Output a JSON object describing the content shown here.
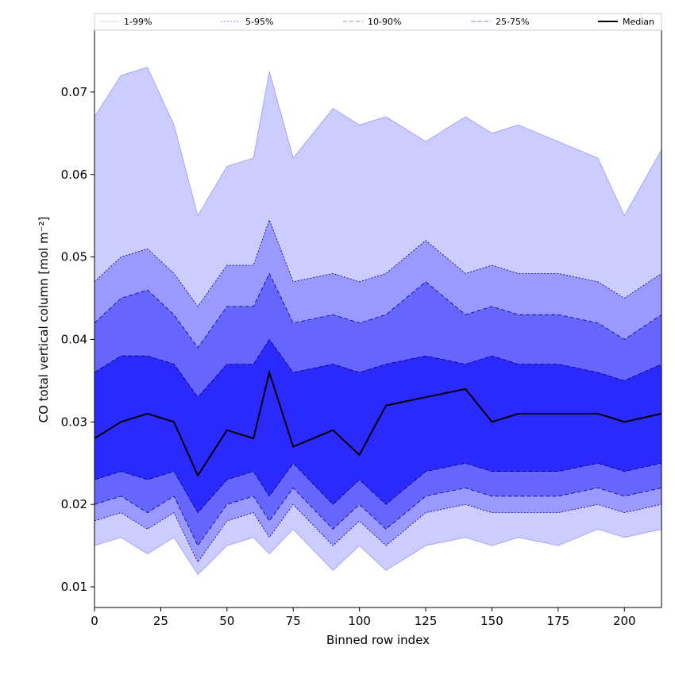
{
  "chart_data": {
    "type": "area",
    "xlabel": "Binned row index",
    "ylabel": "CO total vertical column [mol m⁻²]",
    "xlim": [
      0,
      214
    ],
    "ylim": [
      0.0075,
      0.0775
    ],
    "xticks": [
      0,
      25,
      50,
      75,
      100,
      125,
      150,
      175,
      200
    ],
    "yticks": [
      0.01,
      0.02,
      0.03,
      0.04,
      0.05,
      0.06,
      0.07
    ],
    "ytick_labels": [
      "0.01",
      "0.02",
      "0.03",
      "0.04",
      "0.05",
      "0.06",
      "0.07"
    ],
    "grid": false,
    "legend_position": "top",
    "x": [
      0,
      10,
      20,
      30,
      39,
      50,
      60,
      66,
      75,
      90,
      100,
      110,
      125,
      140,
      150,
      160,
      175,
      190,
      200,
      214
    ],
    "bands": [
      {
        "name": "1-99%",
        "fill": "#ccccff",
        "line_color": "#9999ff",
        "dash": "none",
        "low": [
          0.015,
          0.016,
          0.014,
          0.016,
          0.0115,
          0.015,
          0.016,
          0.014,
          0.017,
          0.012,
          0.015,
          0.012,
          0.015,
          0.016,
          0.015,
          0.016,
          0.015,
          0.017,
          0.016,
          0.017
        ],
        "high": [
          0.067,
          0.072,
          0.073,
          0.066,
          0.055,
          0.061,
          0.062,
          0.0725,
          0.062,
          0.068,
          0.066,
          0.067,
          0.064,
          0.067,
          0.065,
          0.066,
          0.064,
          0.062,
          0.055,
          0.063
        ]
      },
      {
        "name": "5-95%",
        "fill": "#9999ff",
        "line_color": "#000080",
        "dash": "2,2",
        "low": [
          0.018,
          0.019,
          0.017,
          0.019,
          0.013,
          0.018,
          0.019,
          0.016,
          0.02,
          0.015,
          0.018,
          0.015,
          0.019,
          0.02,
          0.019,
          0.019,
          0.019,
          0.02,
          0.019,
          0.02
        ],
        "high": [
          0.047,
          0.05,
          0.051,
          0.048,
          0.044,
          0.049,
          0.049,
          0.0545,
          0.047,
          0.048,
          0.047,
          0.048,
          0.052,
          0.048,
          0.049,
          0.048,
          0.048,
          0.047,
          0.045,
          0.048
        ]
      },
      {
        "name": "10-90%",
        "fill": "#6666ff",
        "line_color": "#000080",
        "dash": "5,3",
        "low": [
          0.02,
          0.021,
          0.019,
          0.021,
          0.015,
          0.02,
          0.021,
          0.018,
          0.022,
          0.017,
          0.02,
          0.017,
          0.021,
          0.022,
          0.021,
          0.021,
          0.021,
          0.022,
          0.021,
          0.022
        ],
        "high": [
          0.042,
          0.045,
          0.046,
          0.043,
          0.039,
          0.044,
          0.044,
          0.048,
          0.042,
          0.043,
          0.042,
          0.043,
          0.047,
          0.043,
          0.044,
          0.043,
          0.043,
          0.042,
          0.04,
          0.043
        ]
      },
      {
        "name": "25-75%",
        "fill": "#2a2aff",
        "line_color": "#000080",
        "dash": "6,2",
        "low": [
          0.023,
          0.024,
          0.023,
          0.024,
          0.019,
          0.023,
          0.024,
          0.021,
          0.025,
          0.02,
          0.023,
          0.02,
          0.024,
          0.025,
          0.024,
          0.024,
          0.024,
          0.025,
          0.024,
          0.025
        ],
        "high": [
          0.036,
          0.038,
          0.038,
          0.037,
          0.033,
          0.037,
          0.037,
          0.04,
          0.036,
          0.037,
          0.036,
          0.037,
          0.038,
          0.037,
          0.038,
          0.037,
          0.037,
          0.036,
          0.035,
          0.037
        ]
      }
    ],
    "series": [
      {
        "name": "Median",
        "color": "#000000",
        "values": [
          0.028,
          0.03,
          0.031,
          0.03,
          0.0235,
          0.029,
          0.028,
          0.036,
          0.027,
          0.029,
          0.026,
          0.032,
          0.033,
          0.034,
          0.03,
          0.031,
          0.031,
          0.031,
          0.03,
          0.031
        ]
      }
    ]
  }
}
